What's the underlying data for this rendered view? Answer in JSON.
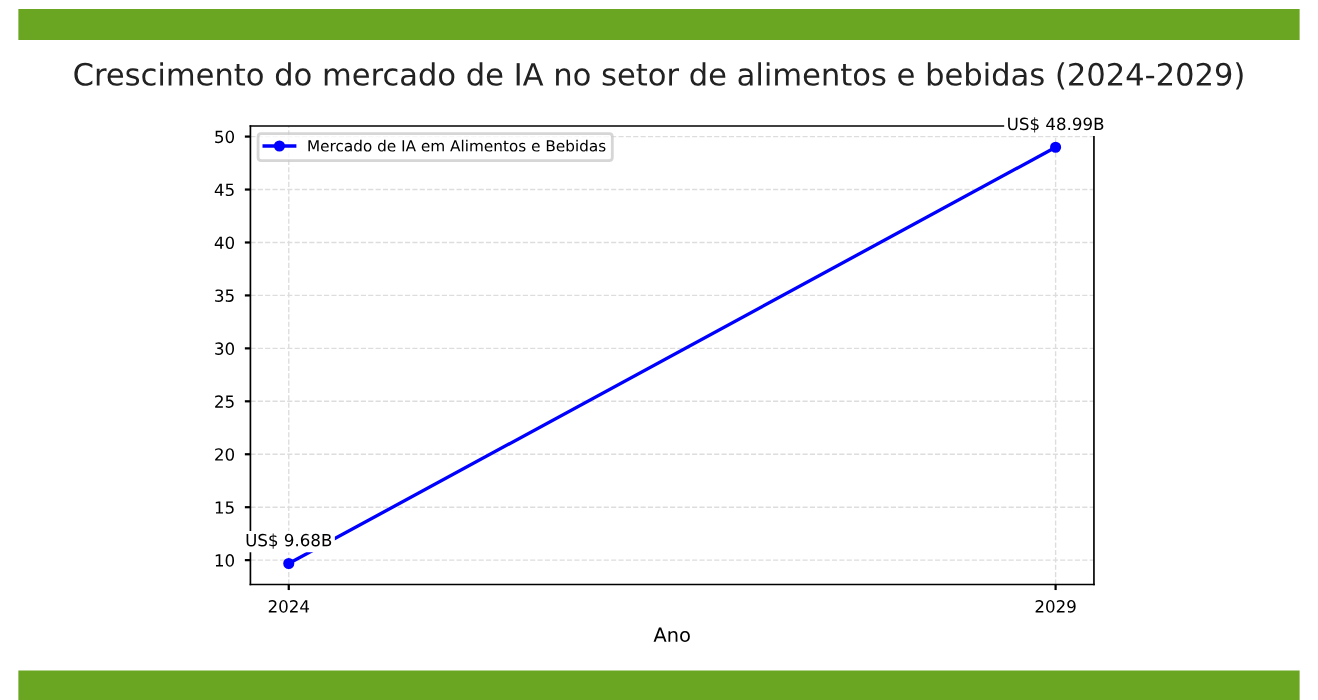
{
  "chart_data": {
    "type": "line",
    "title": "Crescimento do mercado de IA no setor de alimentos e bebidas (2024-2029)",
    "xlabel": "Ano",
    "x": [
      2024,
      2029
    ],
    "series": [
      {
        "name": "Mercado de IA em Alimentos e Bebidas",
        "color": "#0000ff",
        "values": [
          9.68,
          48.99
        ],
        "value_labels": [
          "US$ 9.68B",
          "US$ 48.99B"
        ]
      }
    ],
    "xlim": [
      2023.75,
      2029.25
    ],
    "xticks": [
      2024,
      2029
    ],
    "ylim": [
      7.7,
      51
    ],
    "yticks": [
      10,
      15,
      20,
      25,
      30,
      35,
      40,
      45,
      50
    ],
    "grid": true,
    "legend": "top left",
    "marker": "circle",
    "line_style": "solid"
  }
}
